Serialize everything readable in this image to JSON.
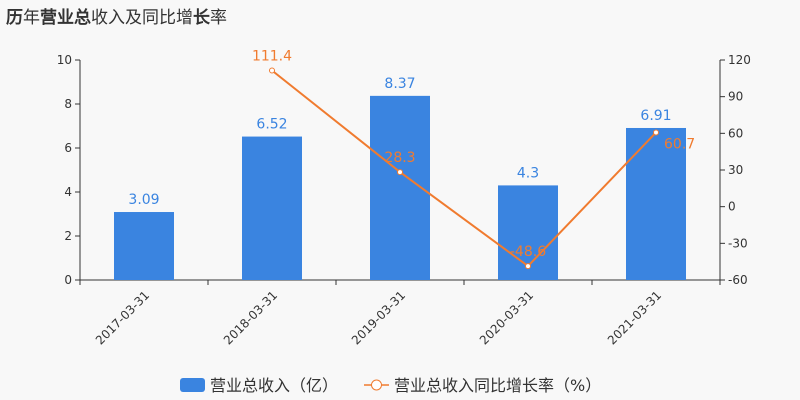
{
  "title_parts": [
    {
      "text": "历",
      "bold": true
    },
    {
      "text": "年",
      "bold": false
    },
    {
      "text": "营业总",
      "bold": true
    },
    {
      "text": "收入及同比增",
      "bold": false
    },
    {
      "text": "长",
      "bold": true
    },
    {
      "text": "率",
      "bold": false
    }
  ],
  "chart_data": {
    "type": "bar+line",
    "title": "历年营业总收入及同比增长率",
    "categories": [
      "2017-03-31",
      "2018-03-31",
      "2019-03-31",
      "2020-03-31",
      "2021-03-31"
    ],
    "series": [
      {
        "name": "营业总收入（亿）",
        "type": "bar",
        "axis": "left",
        "values": [
          3.09,
          6.52,
          8.37,
          4.3,
          6.91
        ],
        "labels": [
          "3.09",
          "6.52",
          "8.37",
          "4.3",
          "6.91"
        ],
        "color": "#3a84e0"
      },
      {
        "name": "营业总收入同比增长率（%）",
        "type": "line",
        "axis": "right",
        "values": [
          null,
          111.4,
          28.3,
          -48.6,
          60.7
        ],
        "labels": [
          "",
          "111.4",
          "28.3",
          "-48.6",
          "60.7"
        ],
        "color": "#f07b2f"
      }
    ],
    "y_left": {
      "min": 0,
      "max": 10,
      "ticks": [
        "0",
        "2",
        "4",
        "6",
        "8",
        "10"
      ]
    },
    "y_right": {
      "min": -60,
      "max": 120,
      "ticks": [
        "-60",
        "-30",
        "0",
        "30",
        "60",
        "90",
        "120"
      ]
    },
    "grid": false,
    "legend_position": "bottom"
  }
}
